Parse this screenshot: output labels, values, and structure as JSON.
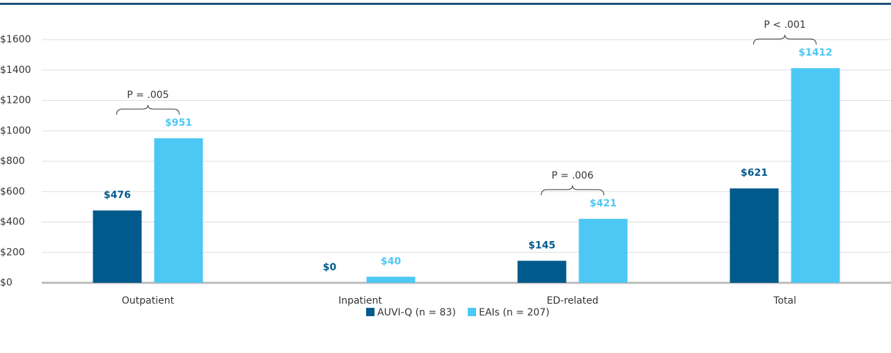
{
  "chart_data": {
    "type": "bar",
    "categories": [
      "Outpatient",
      "Inpatient",
      "ED-related",
      "Total"
    ],
    "series": [
      {
        "name": "AUVI-Q (n = 83)",
        "color": "#005a8c",
        "values": [
          476,
          0,
          145,
          621
        ],
        "value_labels": [
          "$476",
          "$0",
          "$145",
          "$621"
        ]
      },
      {
        "name": "EAIs (n = 207)",
        "color": "#4dc8f4",
        "values": [
          951,
          40,
          421,
          1412
        ],
        "value_labels": [
          "$951",
          "$40",
          "$421",
          "$1412"
        ]
      }
    ],
    "ylim": [
      0,
      1600
    ],
    "yticks": [
      {
        "value": 0,
        "label": "$0"
      },
      {
        "value": 200,
        "label": "$200"
      },
      {
        "value": 400,
        "label": "$400"
      },
      {
        "value": 600,
        "label": "$600"
      },
      {
        "value": 800,
        "label": "$800"
      },
      {
        "value": 1000,
        "label": "$1000"
      },
      {
        "value": 1200,
        "label": "$1200"
      },
      {
        "value": 1400,
        "label": "$1400"
      },
      {
        "value": 1600,
        "label": "$1600"
      }
    ],
    "grid": true,
    "legend": "bottom",
    "annotations": [
      "P = .005",
      "P = .006",
      "P < .001"
    ]
  }
}
